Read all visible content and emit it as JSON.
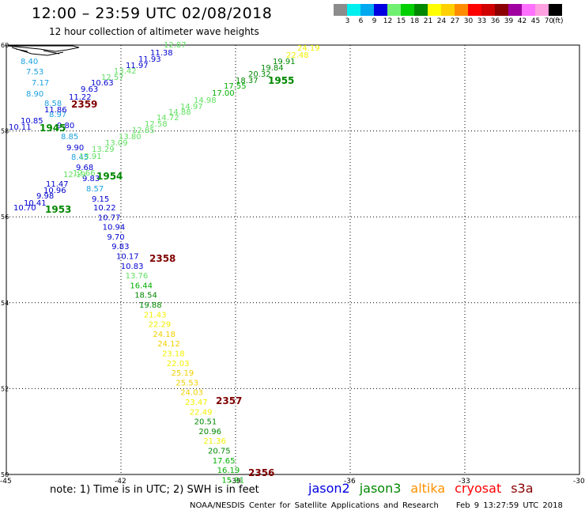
{
  "title": "12:00 – 23:59 UTC 02/08/2018",
  "subtitle": "12 hour collection of altimeter wave heights",
  "scale": {
    "unit": "(ft)",
    "colors": [
      "#8c8c8c",
      "#00f0f0",
      "#00a8f0",
      "#0000e0",
      "#70f070",
      "#00d000",
      "#008800",
      "#ffff00",
      "#ffd000",
      "#ff8c00",
      "#ff0000",
      "#d00000",
      "#8b0000",
      "#a000a0",
      "#ff70ff",
      "#ffa0e0",
      "#000000"
    ],
    "labels": [
      "3",
      "6",
      "9",
      "12",
      "15",
      "18",
      "21",
      "24",
      "27",
      "30",
      "33",
      "36",
      "39",
      "42",
      "45",
      "70"
    ]
  },
  "map": {
    "lon_ticks": [
      "-45",
      "-42",
      "-39",
      "-36",
      "-33",
      "-30"
    ],
    "lat_ticks": [
      "60",
      "58",
      "56",
      "54",
      "52",
      "50"
    ],
    "lon_range": [
      -45,
      -30
    ],
    "lat_range": [
      50,
      60
    ]
  },
  "tracks": {
    "ascending_top": {
      "time": "2359",
      "points": [
        {
          "v": "10.11",
          "c": "#0000d0"
        },
        {
          "v": "10.85",
          "c": "#0000d0"
        },
        {
          "v": "11.86",
          "c": "#0000d0"
        },
        {
          "v": "8.58",
          "c": "#1ca0e0"
        },
        {
          "v": "11.22",
          "c": "#0000d0"
        },
        {
          "v": "10.63",
          "c": "#0000d0"
        },
        {
          "v": "9.63",
          "c": "#0000d0"
        },
        {
          "v": "11.97",
          "c": "#0000d0"
        },
        {
          "v": "11.93",
          "c": "#0000d0"
        },
        {
          "v": "11.38",
          "c": "#0000d0"
        }
      ]
    },
    "ascending_upper_green": {
      "time": "1955",
      "points": [
        {
          "v": "12.57",
          "c": "#60e060"
        },
        {
          "v": "13.42",
          "c": "#60e060"
        },
        {
          "v": "12.87",
          "c": "#60e060"
        },
        {
          "v": "12.57",
          "c": "#60e060"
        }
      ]
    },
    "ascending_green_long": {
      "points": [
        {
          "v": "13.91",
          "c": "#60e060"
        },
        {
          "v": "13.29",
          "c": "#60e060"
        },
        {
          "v": "13.09",
          "c": "#60e060"
        },
        {
          "v": "13.80",
          "c": "#60e060"
        },
        {
          "v": "12.85",
          "c": "#60e060"
        },
        {
          "v": "12.58",
          "c": "#60e060"
        },
        {
          "v": "14.72",
          "c": "#60e060"
        },
        {
          "v": "14.88",
          "c": "#60e060"
        },
        {
          "v": "14.97",
          "c": "#60e060"
        },
        {
          "v": "14.98",
          "c": "#60e060"
        },
        {
          "v": "17.00",
          "c": "#00b000"
        },
        {
          "v": "17.55",
          "c": "#00b000"
        },
        {
          "v": "18.37",
          "c": "#008800"
        },
        {
          "v": "20.32",
          "c": "#008800"
        },
        {
          "v": "19.84",
          "c": "#008800"
        },
        {
          "v": "19.91",
          "c": "#008800"
        },
        {
          "v": "22.48",
          "c": "#f0f000"
        },
        {
          "v": "24.19",
          "c": "#f0f000"
        }
      ]
    },
    "left_cluster": {
      "time_a": "1945",
      "time_b": "1954",
      "time_c": "1953",
      "points": [
        {
          "v": "8.40",
          "c": "#1ca0e0"
        },
        {
          "v": "7.53",
          "c": "#1ca0e0"
        },
        {
          "v": "7.17",
          "c": "#1ca0e0"
        },
        {
          "v": "8.90",
          "c": "#1ca0e0"
        },
        {
          "v": "8.97",
          "c": "#1ca0e0"
        },
        {
          "v": "9.80",
          "c": "#0000d0"
        },
        {
          "v": "8.85",
          "c": "#1ca0e0"
        },
        {
          "v": "9.90",
          "c": "#0000d0"
        },
        {
          "v": "8.45",
          "c": "#1ca0e0"
        },
        {
          "v": "9.68",
          "c": "#0000d0"
        },
        {
          "v": "9.83",
          "c": "#0000d0"
        },
        {
          "v": "12.19",
          "c": "#60e060"
        },
        {
          "v": "12.66",
          "c": "#60e060"
        },
        {
          "v": "11.47",
          "c": "#0000d0"
        },
        {
          "v": "10.96",
          "c": "#0000d0"
        },
        {
          "v": "9.98",
          "c": "#0000d0"
        },
        {
          "v": "10.41",
          "c": "#0000d0"
        },
        {
          "v": "10.70",
          "c": "#0000d0"
        },
        {
          "v": "8.57",
          "c": "#1ca0e0"
        },
        {
          "v": "9.15",
          "c": "#0000d0"
        }
      ]
    },
    "descending": {
      "time_a": "2358",
      "time_b": "2357",
      "time_c": "2356",
      "points": [
        {
          "v": "10.22",
          "c": "#0000d0"
        },
        {
          "v": "10.77",
          "c": "#0000d0"
        },
        {
          "v": "10.94",
          "c": "#0000d0"
        },
        {
          "v": "9.70",
          "c": "#0000d0"
        },
        {
          "v": "9.83",
          "c": "#0000d0"
        },
        {
          "v": "10.17",
          "c": "#0000d0"
        },
        {
          "v": "10.83",
          "c": "#0000d0"
        },
        {
          "v": "13.76",
          "c": "#60e060"
        },
        {
          "v": "16.44",
          "c": "#00b000"
        },
        {
          "v": "18.54",
          "c": "#008800"
        },
        {
          "v": "19.88",
          "c": "#008800"
        },
        {
          "v": "21.43",
          "c": "#f0f000"
        },
        {
          "v": "22.29",
          "c": "#f0f000"
        },
        {
          "v": "24.18",
          "c": "#f0d000"
        },
        {
          "v": "24.12",
          "c": "#f0d000"
        },
        {
          "v": "23.18",
          "c": "#f0f000"
        },
        {
          "v": "22.03",
          "c": "#f0f000"
        },
        {
          "v": "25.19",
          "c": "#f0d000"
        },
        {
          "v": "25.53",
          "c": "#f0d000"
        },
        {
          "v": "24.03",
          "c": "#f0d000"
        },
        {
          "v": "23.47",
          "c": "#f0f000"
        },
        {
          "v": "22.49",
          "c": "#f0f000"
        },
        {
          "v": "20.51",
          "c": "#008800"
        },
        {
          "v": "20.96",
          "c": "#008800"
        },
        {
          "v": "21.36",
          "c": "#f0f000"
        },
        {
          "v": "20.75",
          "c": "#008800"
        },
        {
          "v": "17.65",
          "c": "#00b000"
        },
        {
          "v": "16.19",
          "c": "#00b000"
        },
        {
          "v": "15.91",
          "c": "#00b000"
        }
      ]
    }
  },
  "note": "note: 1) Time is in UTC; 2) SWH is in feet",
  "satellites": [
    {
      "name": "jason2",
      "color": "#0000e0"
    },
    {
      "name": "jason3",
      "color": "#008800"
    },
    {
      "name": "altika",
      "color": "#ff9000"
    },
    {
      "name": "cryosat",
      "color": "#ff0000"
    },
    {
      "name": "s3a",
      "color": "#8b0000"
    }
  ],
  "footer": {
    "org": "NOAA/NESDIS Center for Satellite Applications and Research",
    "date": "Feb  9 13:27:59 UTC 2018"
  },
  "colors": {
    "time_label": "#800000",
    "time_label_green": "#008800",
    "grid": "#000000"
  }
}
